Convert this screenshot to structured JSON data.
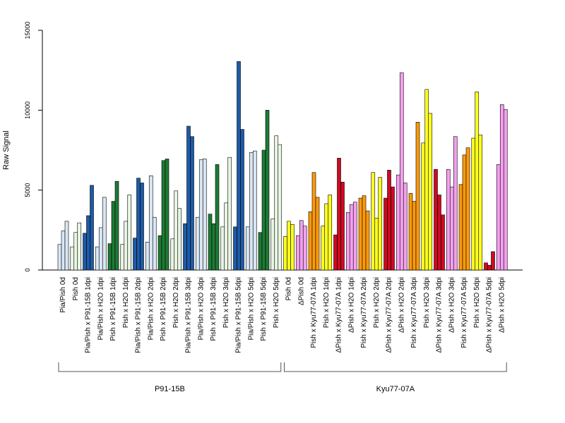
{
  "chart_data": {
    "type": "bar",
    "ylabel": "Raw Signal",
    "ylim": [
      0,
      15000
    ],
    "yticks": [
      0,
      5000,
      10000,
      15000
    ],
    "grid": false,
    "legend": "none",
    "bars_per_category": 3,
    "categories": [
      "Pia/Pish 0d",
      "Pish 0d",
      "Pia/Pish x P91-15B 1dpi",
      "Pia/Pish x H2O 1dpi",
      "Pish x P91-15B 1dpi",
      "Pish x H2O 1dpi",
      "Pia/Pish x P91-15B 2dpi",
      "Pia/Pish x H2O 2dpi",
      "Pish x P91-15B 2dpi",
      "Pish x H2O 2dpi",
      "Pia/Pish x P91-15B 3dpi",
      "Pia/Pish x H2O 3dpi",
      "Pish x P91-15B 3dpi",
      "Pish x H2O 3dpi",
      "Pia/Pish x P91-15B 5dpi",
      "Pia/Pish x H2O 5dpi",
      "Pish x P91-15B 5dpi",
      "Pish x H2O 5dpi",
      "Pish 0d",
      "ΔPish 0d",
      "Pish x Kyu77-07A 1dpi",
      "Pish x H2O 1dpi",
      "ΔPish x Kyu77-07A 1dpi",
      "ΔPish x H2O 1dpi",
      "Pish x Kyu77-07A 2dpi",
      "Pish x H2O 2dpi",
      "ΔPish x Kyu77-07A 2dpi",
      "ΔPish x H2O 2dpi",
      "Pish x Kyu77-07A 3dpi",
      "Pish x H2O 3dpi",
      "ΔPish x Kyu77-07A 3dpi",
      "ΔPish x H2O 3dpi",
      "Pish x Kyu77-07A 5dpi",
      "Pish x H2O 5dpi",
      "ΔPish x Kyu77-07A 5dpi",
      "ΔPish x H2O 5dpi"
    ],
    "colors": [
      "#dae7f5",
      "#eaf6e4",
      "#1f5ba7",
      "#dae7f5",
      "#1e7a35",
      "#eaf6e4",
      "#1f5ba7",
      "#dae7f5",
      "#1e7a35",
      "#eaf6e4",
      "#1f5ba7",
      "#dae7f5",
      "#1e7a35",
      "#eaf6e4",
      "#1f5ba7",
      "#dae7f5",
      "#1e7a35",
      "#eaf6e4",
      "#ffff22",
      "#f5a0ef",
      "#ff9a0a",
      "#ffff22",
      "#cf0a22",
      "#f5a0ef",
      "#ff9a0a",
      "#ffff22",
      "#cf0a22",
      "#f5a0ef",
      "#ff9a0a",
      "#ffff22",
      "#cf0a22",
      "#f5a0ef",
      "#ff9a0a",
      "#ffff22",
      "#cf0a22",
      "#f5a0ef"
    ],
    "values": [
      [
        1600,
        2450,
        3050
      ],
      [
        1450,
        2350,
        2950
      ],
      [
        2300,
        3400,
        5300
      ],
      [
        1450,
        2650,
        4550
      ],
      [
        1650,
        4300,
        5550
      ],
      [
        1600,
        3050,
        4700
      ],
      [
        2000,
        5750,
        5450
      ],
      [
        1750,
        5900,
        3300
      ],
      [
        2150,
        6850,
        6950
      ],
      [
        1950,
        4950,
        3850
      ],
      [
        2900,
        9000,
        8350
      ],
      [
        3300,
        6900,
        6950
      ],
      [
        3500,
        2900,
        6600
      ],
      [
        2700,
        4200,
        7050
      ],
      [
        2700,
        13050,
        8800
      ],
      [
        2700,
        7350,
        7450
      ],
      [
        2350,
        7500,
        10000
      ],
      [
        3200,
        8400,
        7850
      ],
      [
        2100,
        3050,
        2850
      ],
      [
        2150,
        3100,
        2750
      ],
      [
        3650,
        6100,
        4550
      ],
      [
        2750,
        4150,
        4700
      ],
      [
        2200,
        7000,
        5500
      ],
      [
        3600,
        4100,
        4250
      ],
      [
        4500,
        4650,
        3700
      ],
      [
        6100,
        3250,
        5800
      ],
      [
        4500,
        6250,
        5200
      ],
      [
        5950,
        12350,
        5450
      ],
      [
        4800,
        4300,
        9250
      ],
      [
        7950,
        11300,
        9800
      ],
      [
        6300,
        4700,
        3450
      ],
      [
        6300,
        5200,
        8350
      ],
      [
        5350,
        7200,
        7650
      ],
      [
        8250,
        11150,
        8450
      ],
      [
        450,
        300,
        1150
      ],
      [
        6600,
        10350,
        10050
      ]
    ],
    "groups": [
      {
        "label": "P91-15B",
        "start": 0,
        "end": 17
      },
      {
        "label": "Kyu77-07A",
        "start": 18,
        "end": 35
      }
    ]
  }
}
